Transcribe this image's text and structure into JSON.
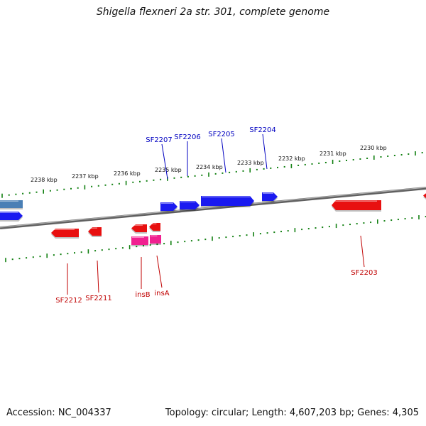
{
  "title": "Shigella flexneri 2a str. 301, complete genome",
  "footer": {
    "accession": "Accession: NC_004337",
    "summary": "Topology: circular; Length: 4,607,203 bp; Genes: 4,305"
  },
  "colors": {
    "forward_gene": "#1a1af0",
    "reverse_gene": "#e81010",
    "insertion_element": "#f02090",
    "ruler_ticks": "#128012",
    "backbone": "#808080",
    "forward_label": "#0000c0",
    "reverse_label": "#c00000"
  },
  "ruler_labels": [
    "2238 kbp",
    "2237 kbp",
    "2236 kbp",
    "2235 kbp",
    "2234 kbp",
    "2233 kbp",
    "2232 kbp",
    "2231 kbp",
    "2230 kbp"
  ],
  "forward_gene_labels": [
    "SF2207",
    "SF2206",
    "SF2205",
    "SF2204"
  ],
  "reverse_gene_labels": [
    "SF2212",
    "SF2211",
    "insB",
    "insA",
    "SF2203"
  ]
}
